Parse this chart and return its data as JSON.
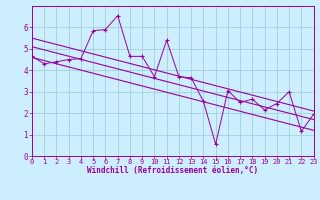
{
  "background_color": "#cceeff",
  "plot_bg_color": "#cceeff",
  "line_color": "#990099",
  "grid_color": "#99cccc",
  "xlabel": "Windchill (Refroidissement éolien,°C)",
  "xlim": [
    0,
    23
  ],
  "ylim": [
    0,
    7
  ],
  "xticks": [
    0,
    1,
    2,
    3,
    4,
    5,
    6,
    7,
    8,
    9,
    10,
    11,
    12,
    13,
    14,
    15,
    16,
    17,
    18,
    19,
    20,
    21,
    22,
    23
  ],
  "yticks": [
    0,
    1,
    2,
    3,
    4,
    5,
    6
  ],
  "series1": [
    [
      0,
      4.65
    ],
    [
      1,
      4.3
    ],
    [
      2,
      4.4
    ],
    [
      3,
      4.5
    ],
    [
      4,
      4.55
    ],
    [
      5,
      5.85
    ],
    [
      6,
      5.9
    ],
    [
      7,
      6.55
    ],
    [
      8,
      4.65
    ],
    [
      9,
      4.65
    ],
    [
      10,
      3.7
    ],
    [
      11,
      5.4
    ],
    [
      12,
      3.7
    ],
    [
      13,
      3.65
    ],
    [
      14,
      2.55
    ],
    [
      15,
      0.55
    ],
    [
      16,
      3.05
    ],
    [
      17,
      2.5
    ],
    [
      18,
      2.65
    ],
    [
      19,
      2.15
    ],
    [
      20,
      2.45
    ],
    [
      21,
      3.0
    ],
    [
      22,
      1.15
    ],
    [
      23,
      1.95
    ]
  ],
  "trend_lines": [
    [
      [
        0,
        5.5
      ],
      [
        23,
        2.1
      ]
    ],
    [
      [
        0,
        5.1
      ],
      [
        23,
        1.7
      ]
    ],
    [
      [
        0,
        4.6
      ],
      [
        23,
        1.2
      ]
    ]
  ],
  "tick_fontsize": 5.0,
  "xlabel_fontsize": 5.5
}
